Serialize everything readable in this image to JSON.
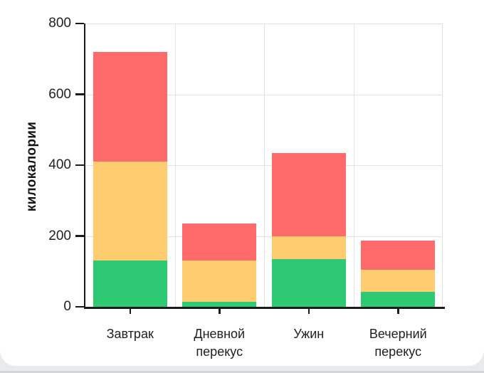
{
  "page": {
    "background_color": "#e9eaec",
    "card_color": "#ffffff",
    "bottom_edge_color": "#d5d6d8"
  },
  "chart_data": {
    "type": "bar",
    "stacked": true,
    "title": "",
    "ylabel": "килокалории",
    "xlabel": "",
    "categories": [
      "Завтрак",
      "Дневной перекус",
      "Ужин",
      "Вечерний перекус"
    ],
    "series": [
      {
        "name": "green-bottom-segment",
        "color": "#2dca73",
        "values": [
          130,
          15,
          135,
          42
        ]
      },
      {
        "name": "yellow-middle-segment",
        "color": "#ffcc70",
        "values": [
          280,
          115,
          65,
          63
        ]
      },
      {
        "name": "red-top-segment",
        "color": "#ff6b6b",
        "values": [
          310,
          105,
          235,
          83
        ]
      }
    ],
    "stack_totals": [
      720,
      235,
      435,
      188
    ],
    "ylim": [
      0,
      800
    ],
    "yticks": [
      0,
      200,
      400,
      600,
      800
    ],
    "grid": true,
    "legend_position": "none",
    "colors": {
      "grid": "#e2e2e2",
      "axis": "#1b1b1b",
      "text": "#1f1f1f"
    }
  }
}
